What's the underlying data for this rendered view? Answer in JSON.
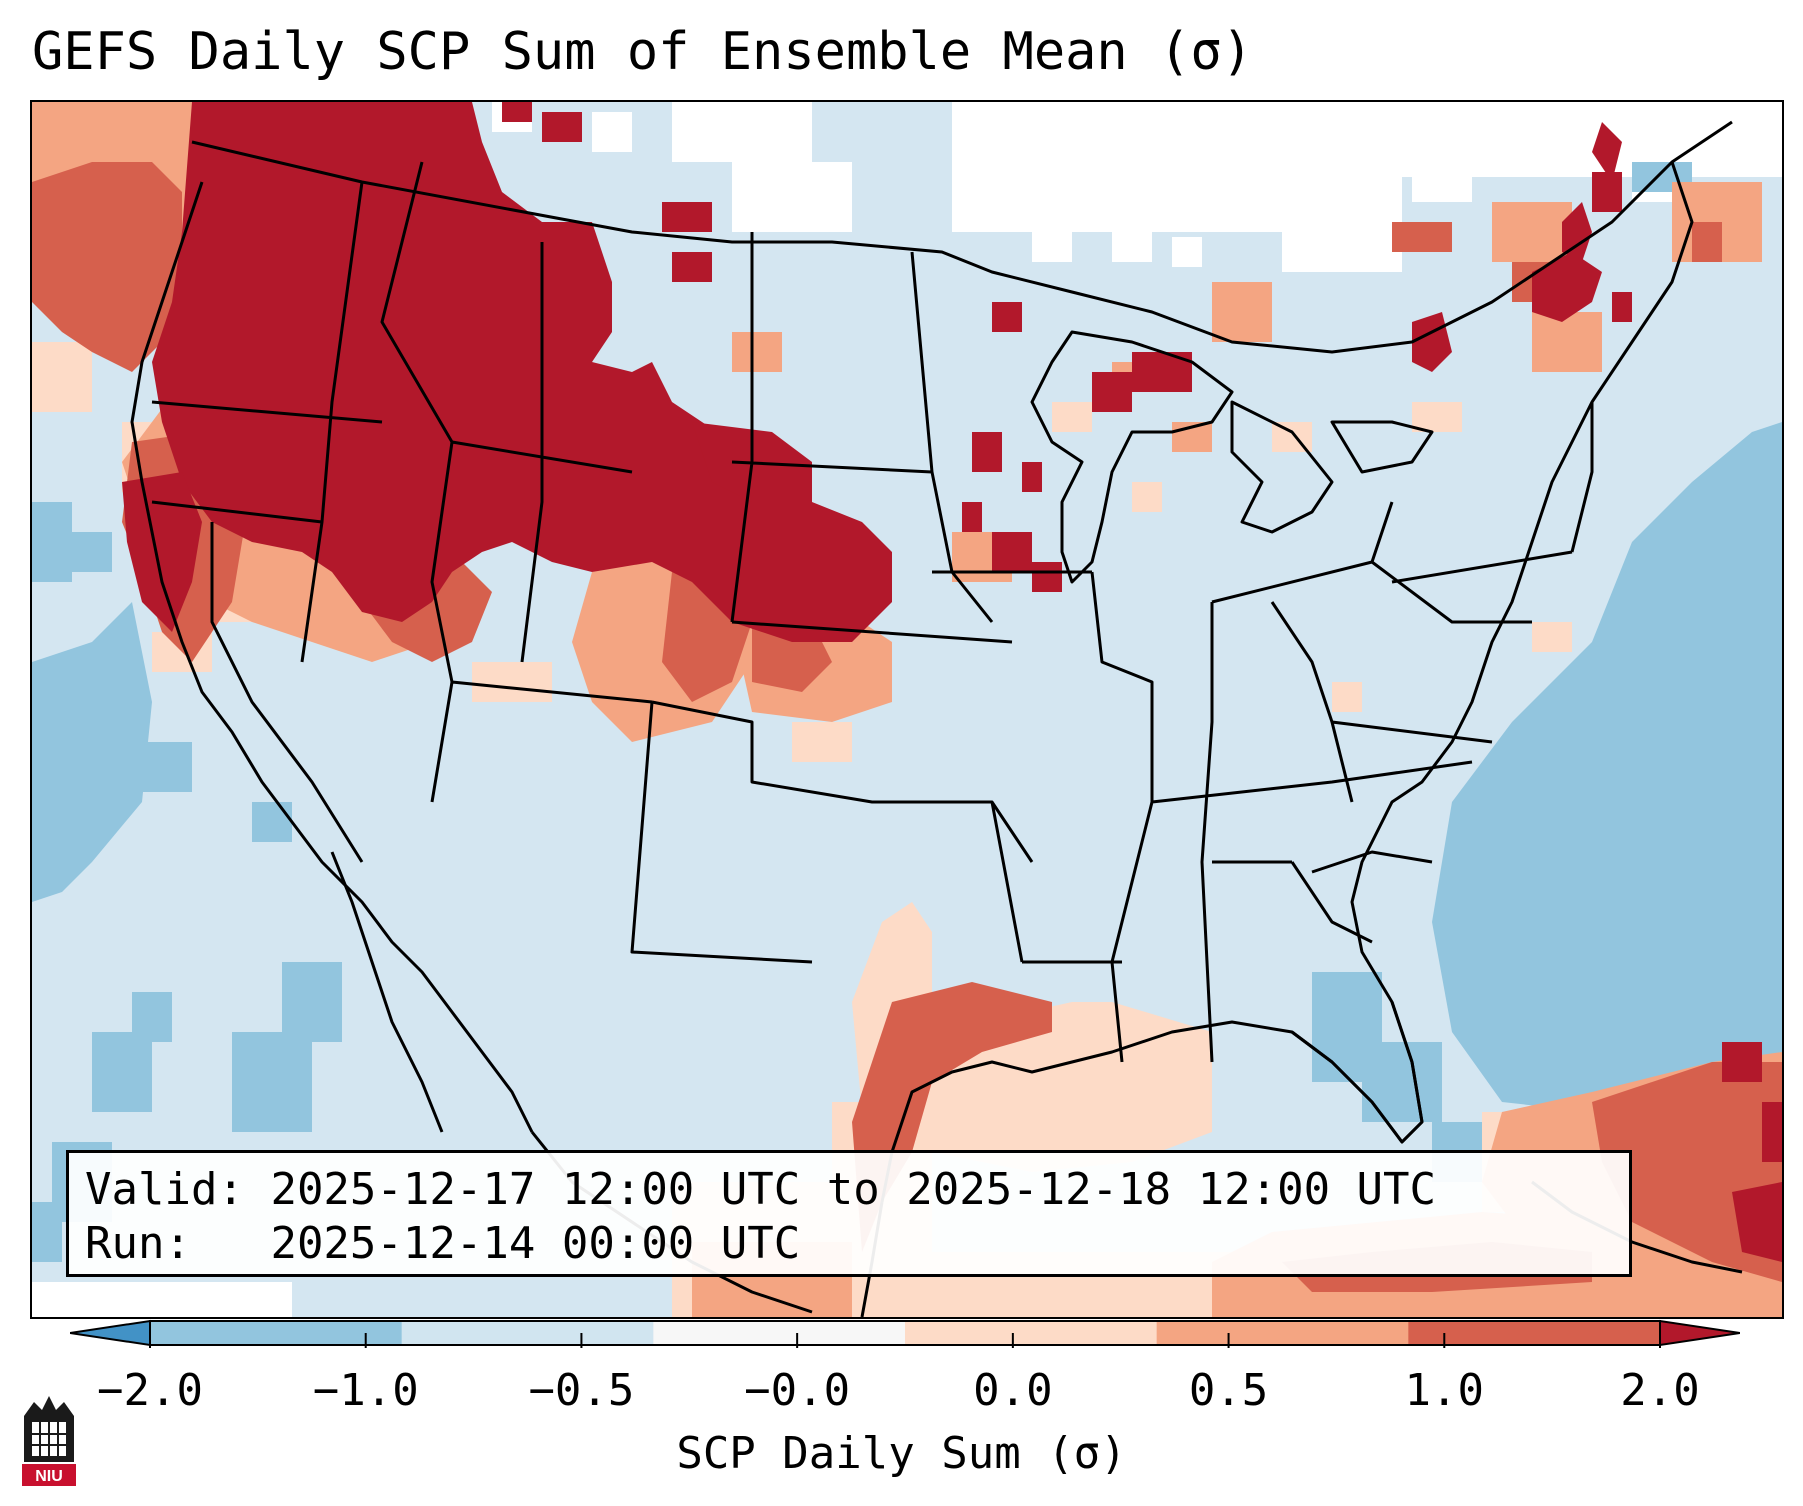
{
  "title": "GEFS Daily SCP Sum of Ensemble Mean (σ)",
  "info": {
    "valid_label": "Valid:",
    "valid_value": "2025-12-17 12:00 UTC to 2025-12-18 12:00 UTC",
    "run_label": "Run:",
    "run_value": "2025-12-14 00:00 UTC"
  },
  "colorbar": {
    "label": "SCP Daily Sum (σ)",
    "ticks": [
      "−2.0",
      "−1.0",
      "−0.5",
      "−0.0",
      "0.0",
      "0.5",
      "1.0",
      "2.0"
    ],
    "colors": [
      "#4292c6",
      "#92c5de",
      "#d1e5f0",
      "#f7f7f7",
      "#fddbc7",
      "#f4a582",
      "#d6604d",
      "#b2182b"
    ],
    "extend": "both"
  },
  "logo": {
    "text": "NIU"
  },
  "colors": {
    "ocean_light": "#d4e6f1",
    "mid_blue": "#92c5de",
    "dark_red": "#b2182b",
    "red": "#d6604d",
    "salmon": "#f4a582",
    "peach": "#fddbc7",
    "white": "#ffffff",
    "border": "#000000"
  }
}
